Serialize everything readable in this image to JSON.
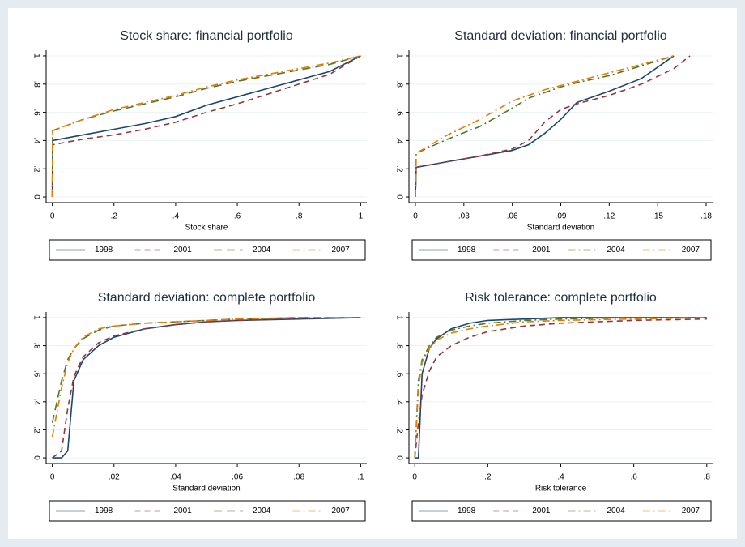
{
  "chart_data": [
    {
      "type": "line",
      "title": "Stock share: financial portfolio",
      "x_label": "Stock share",
      "x": [
        0,
        0.001,
        0.1,
        0.2,
        0.3,
        0.4,
        0.5,
        0.6,
        0.7,
        0.8,
        0.9,
        1
      ],
      "xlim": [
        -0.02,
        1.02
      ],
      "xticks": [
        0,
        {
          "value": 0.2,
          "label": ".2"
        },
        {
          "value": 0.4,
          "label": ".4"
        },
        {
          "value": 0.6,
          "label": ".6"
        },
        {
          "value": 0.8,
          "label": ".8"
        },
        1
      ],
      "ylim": [
        -0.04,
        1.04
      ],
      "yticks": [
        0,
        {
          "value": 0.2,
          "label": ".2"
        },
        {
          "value": 0.4,
          "label": ".4"
        },
        {
          "value": 0.6,
          "label": ".6"
        },
        {
          "value": 0.8,
          "label": ".8"
        },
        1
      ],
      "grid": true,
      "series": [
        {
          "name": "1998",
          "color": "#1a476f",
          "dash": "solid",
          "values": [
            0,
            0.4,
            0.44,
            0.48,
            0.52,
            0.57,
            0.65,
            0.71,
            0.77,
            0.83,
            0.89,
            1
          ]
        },
        {
          "name": "2001",
          "color": "#90353b",
          "dash": "dashed",
          "values": [
            0,
            0.37,
            0.41,
            0.44,
            0.48,
            0.53,
            0.6,
            0.66,
            0.73,
            0.8,
            0.87,
            1
          ]
        },
        {
          "name": "2004",
          "color": "#55752f",
          "dash": "longdash",
          "values": [
            0,
            0.47,
            0.55,
            0.61,
            0.66,
            0.71,
            0.77,
            0.82,
            0.86,
            0.9,
            0.94,
            1
          ]
        },
        {
          "name": "2007",
          "color": "#e37e00",
          "dash": "dashdot",
          "values": [
            0,
            0.47,
            0.55,
            0.62,
            0.67,
            0.72,
            0.78,
            0.83,
            0.87,
            0.91,
            0.95,
            1
          ]
        }
      ]
    },
    {
      "type": "line",
      "title": "Standard deviation: financial portfolio",
      "x_label": "Standard deviation",
      "x": [
        0,
        0.0005,
        0.02,
        0.04,
        0.06,
        0.07,
        0.08,
        0.09,
        0.1,
        0.12,
        0.14,
        0.16,
        0.17
      ],
      "xlim": [
        -0.004,
        0.184
      ],
      "xticks": [
        0,
        {
          "value": 0.03,
          "label": ".03"
        },
        {
          "value": 0.06,
          "label": ".06"
        },
        {
          "value": 0.09,
          "label": ".09"
        },
        {
          "value": 0.12,
          "label": ".12"
        },
        {
          "value": 0.15,
          "label": ".15"
        },
        {
          "value": 0.18,
          "label": ".18"
        }
      ],
      "ylim": [
        -0.04,
        1.04
      ],
      "yticks": [
        0,
        {
          "value": 0.2,
          "label": ".2"
        },
        {
          "value": 0.4,
          "label": ".4"
        },
        {
          "value": 0.6,
          "label": ".6"
        },
        {
          "value": 0.8,
          "label": ".8"
        },
        1
      ],
      "grid": true,
      "series": [
        {
          "name": "1998",
          "color": "#1a476f",
          "dash": "solid",
          "values": [
            0,
            0.21,
            0.25,
            0.29,
            0.33,
            0.37,
            0.45,
            0.55,
            0.67,
            0.75,
            0.84,
            1,
            null
          ]
        },
        {
          "name": "2001",
          "color": "#90353b",
          "dash": "dashed",
          "values": [
            0,
            0.21,
            0.25,
            0.29,
            0.34,
            0.4,
            0.53,
            0.62,
            0.66,
            0.72,
            0.8,
            0.91,
            1
          ]
        },
        {
          "name": "2004",
          "color": "#55752f",
          "dash": "dashdot",
          "values": [
            0,
            0.31,
            0.41,
            0.5,
            0.63,
            0.7,
            0.74,
            0.78,
            0.81,
            0.86,
            0.93,
            1,
            null
          ]
        },
        {
          "name": "2007",
          "color": "#e37e00",
          "dash": "dashdot",
          "values": [
            0,
            0.31,
            0.44,
            0.55,
            0.68,
            0.72,
            0.76,
            0.79,
            0.82,
            0.88,
            0.94,
            1,
            null
          ]
        }
      ]
    },
    {
      "type": "line",
      "title": "Standard deviation: complete portfolio",
      "x_label": "Standard deviation",
      "x": [
        0,
        0.003,
        0.005,
        0.007,
        0.01,
        0.015,
        0.02,
        0.03,
        0.04,
        0.05,
        0.06,
        0.08,
        0.1
      ],
      "xlim": [
        -0.002,
        0.102
      ],
      "xticks": [
        0,
        {
          "value": 0.02,
          "label": ".02"
        },
        {
          "value": 0.04,
          "label": ".04"
        },
        {
          "value": 0.06,
          "label": ".06"
        },
        {
          "value": 0.08,
          "label": ".08"
        },
        {
          "value": 0.1,
          "label": ".1"
        }
      ],
      "ylim": [
        -0.04,
        1.04
      ],
      "yticks": [
        0,
        {
          "value": 0.2,
          "label": ".2"
        },
        {
          "value": 0.4,
          "label": ".4"
        },
        {
          "value": 0.6,
          "label": ".6"
        },
        {
          "value": 0.8,
          "label": ".8"
        },
        1
      ],
      "grid": true,
      "series": [
        {
          "name": "1998",
          "color": "#1a476f",
          "dash": "solid",
          "values": [
            0,
            0,
            0.05,
            0.55,
            0.7,
            0.8,
            0.86,
            0.92,
            0.95,
            0.97,
            0.98,
            0.99,
            1
          ]
        },
        {
          "name": "2001",
          "color": "#90353b",
          "dash": "dashed",
          "values": [
            0,
            0.05,
            0.35,
            0.58,
            0.72,
            0.82,
            0.87,
            0.92,
            0.95,
            0.97,
            0.98,
            0.995,
            1
          ]
        },
        {
          "name": "2004",
          "color": "#55752f",
          "dash": "longdash",
          "values": [
            0.25,
            0.55,
            0.7,
            0.78,
            0.85,
            0.91,
            0.94,
            0.96,
            0.97,
            0.98,
            0.99,
            1,
            1
          ]
        },
        {
          "name": "2007",
          "color": "#e37e00",
          "dash": "dashdot",
          "values": [
            0.15,
            0.5,
            0.68,
            0.78,
            0.86,
            0.92,
            0.94,
            0.96,
            0.97,
            0.98,
            0.99,
            1,
            1
          ]
        }
      ]
    },
    {
      "type": "line",
      "title": "Risk tolerance: complete portfolio",
      "x_label": "Risk tolerance",
      "x": [
        0,
        0.01,
        0.02,
        0.04,
        0.06,
        0.1,
        0.15,
        0.2,
        0.3,
        0.4,
        0.6,
        0.8
      ],
      "xlim": [
        -0.016,
        0.816
      ],
      "xticks": [
        0,
        {
          "value": 0.2,
          "label": ".2"
        },
        {
          "value": 0.4,
          "label": ".4"
        },
        {
          "value": 0.6,
          "label": ".6"
        },
        {
          "value": 0.8,
          "label": ".8"
        }
      ],
      "ylim": [
        -0.04,
        1.04
      ],
      "yticks": [
        0,
        {
          "value": 0.2,
          "label": ".2"
        },
        {
          "value": 0.4,
          "label": ".4"
        },
        {
          "value": 0.6,
          "label": ".6"
        },
        {
          "value": 0.8,
          "label": ".8"
        },
        1
      ],
      "grid": true,
      "series": [
        {
          "name": "1998",
          "color": "#1a476f",
          "dash": "solid",
          "values": [
            0,
            0,
            0.6,
            0.78,
            0.85,
            0.92,
            0.96,
            0.98,
            0.99,
            1,
            1,
            1
          ]
        },
        {
          "name": "2001",
          "color": "#90353b",
          "dash": "dashed",
          "values": [
            0,
            0.25,
            0.45,
            0.62,
            0.72,
            0.8,
            0.86,
            0.9,
            0.94,
            0.96,
            0.98,
            0.99
          ]
        },
        {
          "name": "2004",
          "color": "#55752f",
          "dash": "dashdot",
          "values": [
            0,
            0.55,
            0.7,
            0.8,
            0.86,
            0.91,
            0.94,
            0.96,
            0.98,
            0.99,
            1,
            1
          ]
        },
        {
          "name": "2007",
          "color": "#e37e00",
          "dash": "dashdot",
          "values": [
            0,
            0.5,
            0.68,
            0.78,
            0.84,
            0.89,
            0.92,
            0.94,
            0.97,
            0.98,
            0.99,
            1
          ]
        }
      ]
    }
  ]
}
